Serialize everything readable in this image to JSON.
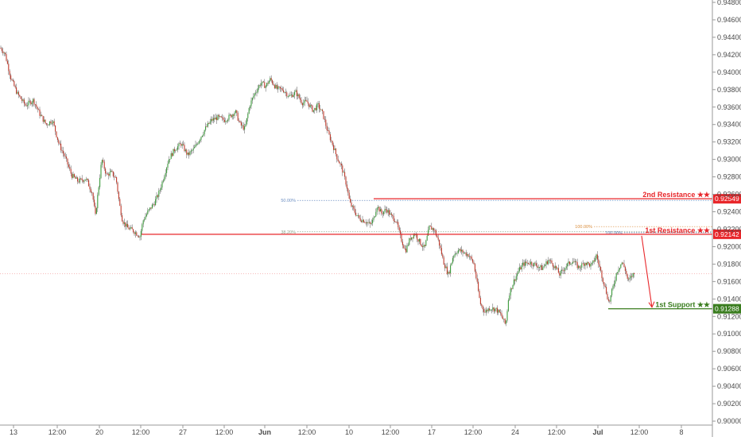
{
  "chart_data": {
    "type": "candlestick",
    "price_axis": {
      "ticks": [
        0.948,
        0.946,
        0.944,
        0.942,
        0.94,
        0.938,
        0.936,
        0.934,
        0.932,
        0.93,
        0.928,
        0.926,
        0.924,
        0.922,
        0.92,
        0.918,
        0.916,
        0.914,
        0.912,
        0.91,
        0.908,
        0.906,
        0.904,
        0.902,
        0.9
      ],
      "tick_labels": [
        "0.94800",
        "0.94600",
        "0.94400",
        "0.94200",
        "0.94000",
        "0.93800",
        "0.93600",
        "0.93400",
        "0.93200",
        "0.93000",
        "0.92800",
        "0.92600",
        "0.92400",
        "0.92200",
        "0.92000",
        "0.91800",
        "0.91600",
        "0.91400",
        "0.91200",
        "0.91000",
        "0.90800",
        "0.90600",
        "0.90400",
        "0.90200",
        "0.90000"
      ],
      "range": [
        0.8995,
        0.9485
      ]
    },
    "time_axis": {
      "labels": [
        "13",
        "12:00",
        "20",
        "12:00",
        "27",
        "12:00",
        "Jun",
        "12:00",
        "10",
        "12:00",
        "17",
        "12:00",
        "24",
        "12:00",
        "Jul",
        "12:00",
        "8"
      ],
      "bold": [
        false,
        false,
        false,
        false,
        false,
        false,
        true,
        false,
        false,
        false,
        false,
        false,
        false,
        false,
        true,
        false,
        false
      ]
    },
    "levels": [
      {
        "name": "2nd Resistance ★★",
        "price": 0.92549,
        "price_label": "0.92549",
        "color": "#e8262a"
      },
      {
        "name": "1st Resistance ★★",
        "price": 0.92142,
        "price_label": "0.92142",
        "color": "#e8262a"
      },
      {
        "name": "1st Support ★★",
        "price": 0.91288,
        "price_label": "0.91288",
        "color": "#3a7d1f"
      }
    ],
    "fib_labels": [
      {
        "text": "50.00%",
        "price": 0.9253
      },
      {
        "text": "38.20%",
        "price": 0.9217
      },
      {
        "text": "100.00%",
        "price": 0.9223
      },
      {
        "text": "100.00%",
        "price": 0.9216
      }
    ],
    "last_price": 0.9169,
    "path_points": [
      [
        0,
        0.9428
      ],
      [
        6,
        0.9422
      ],
      [
        14,
        0.9392
      ],
      [
        22,
        0.9375
      ],
      [
        32,
        0.9362
      ],
      [
        42,
        0.9368
      ],
      [
        50,
        0.9352
      ],
      [
        58,
        0.934
      ],
      [
        66,
        0.9345
      ],
      [
        74,
        0.9318
      ],
      [
        82,
        0.9302
      ],
      [
        90,
        0.9282
      ],
      [
        98,
        0.9275
      ],
      [
        108,
        0.9278
      ],
      [
        116,
        0.9262
      ],
      [
        120,
        0.9235
      ],
      [
        124,
        0.9268
      ],
      [
        128,
        0.93
      ],
      [
        134,
        0.9282
      ],
      [
        140,
        0.9285
      ],
      [
        146,
        0.9278
      ],
      [
        150,
        0.925
      ],
      [
        154,
        0.923
      ],
      [
        160,
        0.9222
      ],
      [
        168,
        0.9218
      ],
      [
        176,
        0.9212
      ],
      [
        180,
        0.923
      ],
      [
        186,
        0.924
      ],
      [
        194,
        0.925
      ],
      [
        200,
        0.9262
      ],
      [
        206,
        0.928
      ],
      [
        212,
        0.93
      ],
      [
        220,
        0.9312
      ],
      [
        228,
        0.9318
      ],
      [
        236,
        0.9305
      ],
      [
        244,
        0.9312
      ],
      [
        250,
        0.9322
      ],
      [
        258,
        0.9335
      ],
      [
        266,
        0.9345
      ],
      [
        274,
        0.9348
      ],
      [
        282,
        0.9345
      ],
      [
        290,
        0.935
      ],
      [
        296,
        0.9355
      ],
      [
        302,
        0.934
      ],
      [
        308,
        0.9335
      ],
      [
        314,
        0.9362
      ],
      [
        320,
        0.9375
      ],
      [
        328,
        0.9388
      ],
      [
        334,
        0.9384
      ],
      [
        340,
        0.9392
      ],
      [
        348,
        0.9381
      ],
      [
        356,
        0.938
      ],
      [
        364,
        0.9372
      ],
      [
        372,
        0.9377
      ],
      [
        380,
        0.9365
      ],
      [
        386,
        0.9366
      ],
      [
        394,
        0.9356
      ],
      [
        400,
        0.9362
      ],
      [
        406,
        0.9352
      ],
      [
        412,
        0.9332
      ],
      [
        418,
        0.9318
      ],
      [
        424,
        0.9302
      ],
      [
        430,
        0.929
      ],
      [
        436,
        0.927
      ],
      [
        440,
        0.925
      ],
      [
        446,
        0.924
      ],
      [
        452,
        0.9232
      ],
      [
        458,
        0.923
      ],
      [
        466,
        0.9225
      ],
      [
        470,
        0.9232
      ],
      [
        474,
        0.9247
      ],
      [
        480,
        0.9238
      ],
      [
        486,
        0.9243
      ],
      [
        492,
        0.9235
      ],
      [
        498,
        0.923
      ],
      [
        504,
        0.921
      ],
      [
        510,
        0.9195
      ],
      [
        516,
        0.921
      ],
      [
        522,
        0.9215
      ],
      [
        528,
        0.9205
      ],
      [
        534,
        0.9198
      ],
      [
        540,
        0.9222
      ],
      [
        546,
        0.922
      ],
      [
        552,
        0.9205
      ],
      [
        558,
        0.9182
      ],
      [
        564,
        0.9168
      ],
      [
        570,
        0.919
      ],
      [
        576,
        0.9196
      ],
      [
        582,
        0.9194
      ],
      [
        590,
        0.919
      ],
      [
        596,
        0.918
      ],
      [
        600,
        0.9158
      ],
      [
        604,
        0.9135
      ],
      [
        610,
        0.9125
      ],
      [
        616,
        0.913
      ],
      [
        624,
        0.9128
      ],
      [
        630,
        0.9122
      ],
      [
        636,
        0.911
      ],
      [
        640,
        0.9145
      ],
      [
        646,
        0.916
      ],
      [
        652,
        0.9172
      ],
      [
        658,
        0.918
      ],
      [
        666,
        0.9182
      ],
      [
        674,
        0.9179
      ],
      [
        682,
        0.9175
      ],
      [
        690,
        0.9185
      ],
      [
        698,
        0.9177
      ],
      [
        704,
        0.9168
      ],
      [
        712,
        0.9178
      ],
      [
        720,
        0.9184
      ],
      [
        728,
        0.9176
      ],
      [
        736,
        0.9182
      ],
      [
        744,
        0.9178
      ],
      [
        750,
        0.919
      ],
      [
        756,
        0.917
      ],
      [
        762,
        0.915
      ],
      [
        766,
        0.9135
      ],
      [
        770,
        0.915
      ],
      [
        776,
        0.9172
      ],
      [
        782,
        0.9182
      ],
      [
        786,
        0.9175
      ],
      [
        790,
        0.916
      ],
      [
        796,
        0.9168
      ],
      [
        800,
        0.9169
      ]
    ]
  }
}
